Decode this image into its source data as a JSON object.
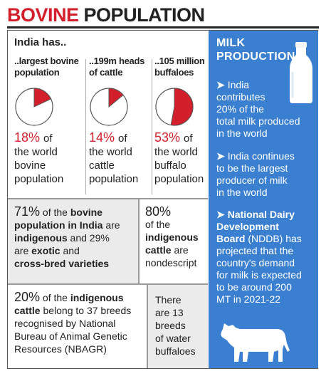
{
  "title": {
    "part1": "BOVINE",
    "part2": "POPULATION"
  },
  "left": {
    "heading": "India has..",
    "columns": [
      {
        "label_line1": "..largest bovine",
        "label_line2": "population",
        "percent": "18%",
        "of": "of",
        "desc1": "the world",
        "desc2": "bovine",
        "desc3": "population",
        "share": 0.18
      },
      {
        "label_line1": "..199m heads",
        "label_line2": "of cattle",
        "percent": "14%",
        "of": "of",
        "desc1": "the world",
        "desc2": "cattle",
        "desc3": "population",
        "share": 0.14
      },
      {
        "label_line1": "..105 million",
        "label_line2": "buffaloes",
        "percent": "53%",
        "of": "of",
        "desc1": "the world",
        "desc2": "buffalo",
        "desc3": "population",
        "share": 0.53
      }
    ],
    "mid_left": {
      "pct": "71%",
      "t1": " of the ",
      "b1": "bovine",
      "b2": "population in India",
      "t2": " are",
      "b3": "indigenous",
      "t3": " and 29%",
      "t4": "are ",
      "b4": "exotic",
      "t5": " and",
      "b5": "cross-bred varieties"
    },
    "mid_right": {
      "pct": "80%",
      "t1": "of the",
      "b1": "indigenous",
      "b2": "cattle",
      "t2": " are",
      "t3": "nondescript"
    },
    "bot_left": {
      "pct": "20%",
      "t1": " of the ",
      "b1": "indigenous",
      "b2": "cattle",
      "t2": " belong to 37 breeds",
      "t3": "recognised by National",
      "t4": "Bureau of Animal Genetic",
      "t5": "Resources (NBAGR)"
    },
    "bot_right": {
      "l1": "There",
      "l2": "are 13",
      "l3": "breeds",
      "l4": "of water",
      "l5": "buffaloes"
    }
  },
  "right": {
    "title_line1": "MILK",
    "title_line2": "PRODUCTION",
    "arrow": "➤",
    "b1": [
      "India",
      "contributes",
      "20% of the",
      "total milk produced",
      "in the world"
    ],
    "b2": [
      "India continues",
      "to be the largest",
      "producer of milk",
      "in the world"
    ],
    "b3_bold": [
      "National Dairy",
      "Development",
      "Board"
    ],
    "b3_after_bold": " (NDDB) has",
    "b3": [
      "projected that the",
      "country's demand",
      "for milk is expected",
      "to be around 200",
      "MT in 2021-22"
    ]
  },
  "colors": {
    "accent": "#d21f2b",
    "panel_blue": "#3b7fd0",
    "grey": "#ebebeb"
  },
  "icons": [
    "milk-bottle-icon",
    "cow-icon"
  ]
}
